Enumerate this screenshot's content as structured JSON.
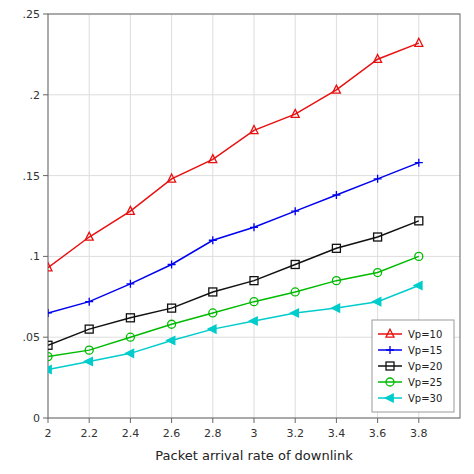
{
  "chart_data": {
    "type": "line",
    "xlabel": "Packet arrival rate of downlink",
    "x": [
      2.0,
      2.2,
      2.4,
      2.6,
      2.8,
      3.0,
      3.2,
      3.4,
      3.6,
      3.8
    ],
    "series": [
      {
        "name": "Vp=10",
        "color": "#e81010",
        "marker": "triangle-up-open",
        "values": [
          0.093,
          0.112,
          0.128,
          0.148,
          0.16,
          0.178,
          0.188,
          0.203,
          0.222,
          0.232
        ]
      },
      {
        "name": "Vp=15",
        "color": "#0000ee",
        "marker": "plus",
        "values": [
          0.065,
          0.072,
          0.083,
          0.095,
          0.11,
          0.118,
          0.128,
          0.138,
          0.148,
          0.158
        ]
      },
      {
        "name": "Vp=20",
        "color": "#111111",
        "marker": "square-open",
        "values": [
          0.045,
          0.055,
          0.062,
          0.068,
          0.078,
          0.085,
          0.095,
          0.105,
          0.112,
          0.122
        ]
      },
      {
        "name": "Vp=25",
        "color": "#00bb00",
        "marker": "circle-open",
        "values": [
          0.038,
          0.042,
          0.05,
          0.058,
          0.065,
          0.072,
          0.078,
          0.085,
          0.09,
          0.1
        ]
      },
      {
        "name": "Vp=30",
        "color": "#00cccc",
        "marker": "triangle-left",
        "values": [
          0.03,
          0.035,
          0.04,
          0.048,
          0.055,
          0.06,
          0.065,
          0.068,
          0.072,
          0.082
        ]
      }
    ],
    "xlim": [
      2.0,
      4.0
    ],
    "ylim": [
      0,
      0.25
    ],
    "xticks": [
      2.0,
      2.2,
      2.4,
      2.6,
      2.8,
      3.0,
      3.2,
      3.4,
      3.6,
      3.8
    ],
    "yticks": [
      0,
      {
        "value": 0.05,
        "label": ".05"
      },
      {
        "value": 0.1,
        "label": ".1"
      },
      {
        "value": 0.15,
        "label": ".15"
      },
      {
        "value": 0.2,
        "label": ".2"
      },
      {
        "value": 0.25,
        "label": ".25"
      }
    ],
    "grid": true,
    "legend": "lower right"
  }
}
